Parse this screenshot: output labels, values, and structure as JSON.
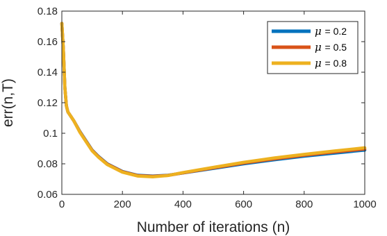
{
  "chart_data": {
    "type": "line",
    "title": "",
    "xlabel": "Number of iterations (n)",
    "ylabel": "err(n,T)",
    "xlim": [
      0,
      1000
    ],
    "ylim": [
      0.06,
      0.18
    ],
    "xticks": [
      0,
      200,
      400,
      600,
      800,
      1000
    ],
    "xtick_labels": [
      "0",
      "200",
      "400",
      "600",
      "800",
      "1000"
    ],
    "yticks": [
      0.06,
      0.08,
      0.1,
      0.12,
      0.14,
      0.16,
      0.18
    ],
    "ytick_labels": [
      "0.06",
      "0.08",
      "0.1",
      "0.12",
      "0.14",
      "0.16",
      "0.18"
    ],
    "grid": false,
    "legend_position": "top-right",
    "series": [
      {
        "name": "= 0.2",
        "symbol": "μ",
        "color": "#0072BD",
        "x": [
          0,
          5,
          10,
          15,
          20,
          30,
          40,
          60,
          80,
          100,
          120,
          150,
          200,
          250,
          300,
          350,
          400,
          450,
          500,
          600,
          700,
          800,
          900,
          1000
        ],
        "y": [
          0.172,
          0.155,
          0.13,
          0.118,
          0.114,
          0.111,
          0.108,
          0.101,
          0.095,
          0.089,
          0.085,
          0.08,
          0.075,
          0.0725,
          0.072,
          0.0725,
          0.074,
          0.0755,
          0.077,
          0.08,
          0.0826,
          0.085,
          0.087,
          0.089
        ]
      },
      {
        "name": "= 0.5",
        "symbol": "μ",
        "color": "#D95319",
        "x": [
          0,
          5,
          10,
          15,
          20,
          30,
          40,
          60,
          80,
          100,
          120,
          150,
          200,
          250,
          300,
          350,
          400,
          450,
          500,
          600,
          700,
          800,
          900,
          1000
        ],
        "y": [
          0.172,
          0.155,
          0.13,
          0.118,
          0.114,
          0.111,
          0.108,
          0.1008,
          0.0948,
          0.0888,
          0.0848,
          0.0798,
          0.0748,
          0.0723,
          0.0718,
          0.0724,
          0.0741,
          0.0757,
          0.0773,
          0.0805,
          0.0832,
          0.0856,
          0.0877,
          0.0897
        ]
      },
      {
        "name": "= 0.8",
        "symbol": "μ",
        "color": "#EDB120",
        "x": [
          0,
          5,
          10,
          15,
          20,
          30,
          40,
          60,
          80,
          100,
          120,
          150,
          200,
          250,
          300,
          350,
          400,
          450,
          500,
          600,
          700,
          800,
          900,
          1000
        ],
        "y": [
          0.172,
          0.155,
          0.13,
          0.118,
          0.114,
          0.111,
          0.108,
          0.1005,
          0.0945,
          0.0885,
          0.0845,
          0.0795,
          0.0745,
          0.072,
          0.0715,
          0.0723,
          0.0743,
          0.076,
          0.0777,
          0.081,
          0.0838,
          0.0862,
          0.0884,
          0.0905
        ]
      }
    ]
  }
}
